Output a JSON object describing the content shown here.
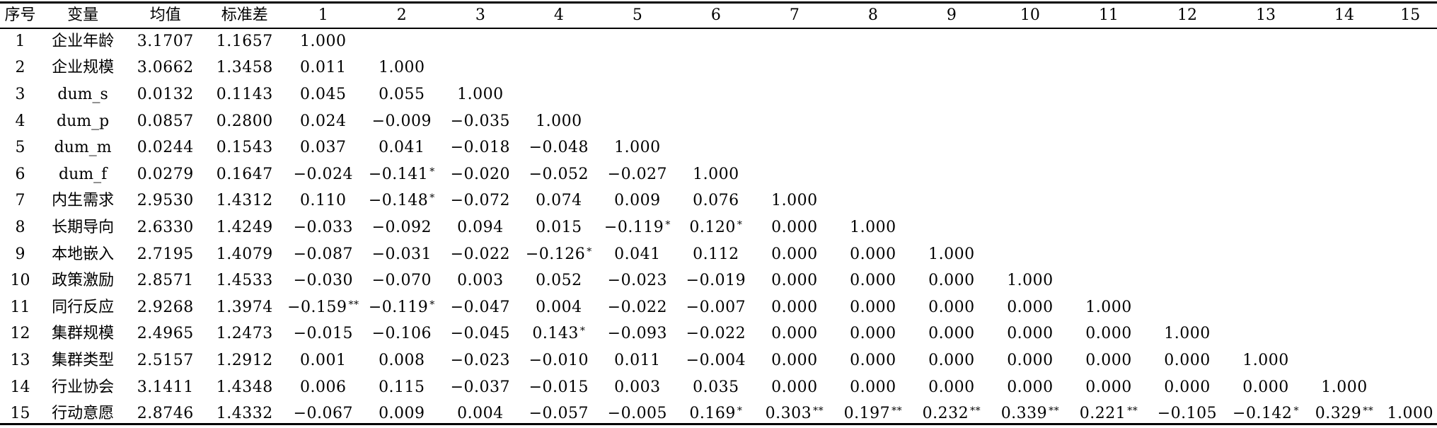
{
  "table": {
    "headers": [
      "序号",
      "变量",
      "均值",
      "标准差",
      "1",
      "2",
      "3",
      "4",
      "5",
      "6",
      "7",
      "8",
      "9",
      "10",
      "11",
      "12",
      "13",
      "14",
      "15"
    ],
    "rows": [
      {
        "index": "1",
        "variable": "企业年龄",
        "mean": "3.1707",
        "sd": "1.1657",
        "corr": [
          {
            "v": "1.000",
            "sig": ""
          }
        ]
      },
      {
        "index": "2",
        "variable": "企业规模",
        "mean": "3.0662",
        "sd": "1.3458",
        "corr": [
          {
            "v": "0.011",
            "sig": ""
          },
          {
            "v": "1.000",
            "sig": ""
          }
        ]
      },
      {
        "index": "3",
        "variable": "dum_s",
        "mean": "0.0132",
        "sd": "0.1143",
        "corr": [
          {
            "v": "0.045",
            "sig": ""
          },
          {
            "v": "0.055",
            "sig": ""
          },
          {
            "v": "1.000",
            "sig": ""
          }
        ]
      },
      {
        "index": "4",
        "variable": "dum_p",
        "mean": "0.0857",
        "sd": "0.2800",
        "corr": [
          {
            "v": "0.024",
            "sig": ""
          },
          {
            "v": "−0.009",
            "sig": ""
          },
          {
            "v": "−0.035",
            "sig": ""
          },
          {
            "v": "1.000",
            "sig": ""
          }
        ]
      },
      {
        "index": "5",
        "variable": "dum_m",
        "mean": "0.0244",
        "sd": "0.1543",
        "corr": [
          {
            "v": "0.037",
            "sig": ""
          },
          {
            "v": "0.041",
            "sig": ""
          },
          {
            "v": "−0.018",
            "sig": ""
          },
          {
            "v": "−0.048",
            "sig": ""
          },
          {
            "v": "1.000",
            "sig": ""
          }
        ]
      },
      {
        "index": "6",
        "variable": "dum_f",
        "mean": "0.0279",
        "sd": "0.1647",
        "corr": [
          {
            "v": "−0.024",
            "sig": ""
          },
          {
            "v": "−0.141",
            "sig": "*"
          },
          {
            "v": "−0.020",
            "sig": ""
          },
          {
            "v": "−0.052",
            "sig": ""
          },
          {
            "v": "−0.027",
            "sig": ""
          },
          {
            "v": "1.000",
            "sig": ""
          }
        ]
      },
      {
        "index": "7",
        "variable": "内生需求",
        "mean": "2.9530",
        "sd": "1.4312",
        "corr": [
          {
            "v": "0.110",
            "sig": ""
          },
          {
            "v": "−0.148",
            "sig": "*"
          },
          {
            "v": "−0.072",
            "sig": ""
          },
          {
            "v": "0.074",
            "sig": ""
          },
          {
            "v": "0.009",
            "sig": ""
          },
          {
            "v": "0.076",
            "sig": ""
          },
          {
            "v": "1.000",
            "sig": ""
          }
        ]
      },
      {
        "index": "8",
        "variable": "长期导向",
        "mean": "2.6330",
        "sd": "1.4249",
        "corr": [
          {
            "v": "−0.033",
            "sig": ""
          },
          {
            "v": "−0.092",
            "sig": ""
          },
          {
            "v": "0.094",
            "sig": ""
          },
          {
            "v": "0.015",
            "sig": ""
          },
          {
            "v": "−0.119",
            "sig": "*"
          },
          {
            "v": "0.120",
            "sig": "*"
          },
          {
            "v": "0.000",
            "sig": ""
          },
          {
            "v": "1.000",
            "sig": ""
          }
        ]
      },
      {
        "index": "9",
        "variable": "本地嵌入",
        "mean": "2.7195",
        "sd": "1.4079",
        "corr": [
          {
            "v": "−0.087",
            "sig": ""
          },
          {
            "v": "−0.031",
            "sig": ""
          },
          {
            "v": "−0.022",
            "sig": ""
          },
          {
            "v": "−0.126",
            "sig": "*"
          },
          {
            "v": "0.041",
            "sig": ""
          },
          {
            "v": "0.112",
            "sig": ""
          },
          {
            "v": "0.000",
            "sig": ""
          },
          {
            "v": "0.000",
            "sig": ""
          },
          {
            "v": "1.000",
            "sig": ""
          }
        ]
      },
      {
        "index": "10",
        "variable": "政策激励",
        "mean": "2.8571",
        "sd": "1.4533",
        "corr": [
          {
            "v": "−0.030",
            "sig": ""
          },
          {
            "v": "−0.070",
            "sig": ""
          },
          {
            "v": "0.003",
            "sig": ""
          },
          {
            "v": "0.052",
            "sig": ""
          },
          {
            "v": "−0.023",
            "sig": ""
          },
          {
            "v": "−0.019",
            "sig": ""
          },
          {
            "v": "0.000",
            "sig": ""
          },
          {
            "v": "0.000",
            "sig": ""
          },
          {
            "v": "0.000",
            "sig": ""
          },
          {
            "v": "1.000",
            "sig": ""
          }
        ]
      },
      {
        "index": "11",
        "variable": "同行反应",
        "mean": "2.9268",
        "sd": "1.3974",
        "corr": [
          {
            "v": "−0.159",
            "sig": "**"
          },
          {
            "v": "−0.119",
            "sig": "*"
          },
          {
            "v": "−0.047",
            "sig": ""
          },
          {
            "v": "0.004",
            "sig": ""
          },
          {
            "v": "−0.022",
            "sig": ""
          },
          {
            "v": "−0.007",
            "sig": ""
          },
          {
            "v": "0.000",
            "sig": ""
          },
          {
            "v": "0.000",
            "sig": ""
          },
          {
            "v": "0.000",
            "sig": ""
          },
          {
            "v": "0.000",
            "sig": ""
          },
          {
            "v": "1.000",
            "sig": ""
          }
        ]
      },
      {
        "index": "12",
        "variable": "集群规模",
        "mean": "2.4965",
        "sd": "1.2473",
        "corr": [
          {
            "v": "−0.015",
            "sig": ""
          },
          {
            "v": "−0.106",
            "sig": ""
          },
          {
            "v": "−0.045",
            "sig": ""
          },
          {
            "v": "0.143",
            "sig": "*"
          },
          {
            "v": "−0.093",
            "sig": ""
          },
          {
            "v": "−0.022",
            "sig": ""
          },
          {
            "v": "0.000",
            "sig": ""
          },
          {
            "v": "0.000",
            "sig": ""
          },
          {
            "v": "0.000",
            "sig": ""
          },
          {
            "v": "0.000",
            "sig": ""
          },
          {
            "v": "0.000",
            "sig": ""
          },
          {
            "v": "1.000",
            "sig": ""
          }
        ]
      },
      {
        "index": "13",
        "variable": "集群类型",
        "mean": "2.5157",
        "sd": "1.2912",
        "corr": [
          {
            "v": "0.001",
            "sig": ""
          },
          {
            "v": "0.008",
            "sig": ""
          },
          {
            "v": "−0.023",
            "sig": ""
          },
          {
            "v": "−0.010",
            "sig": ""
          },
          {
            "v": "0.011",
            "sig": ""
          },
          {
            "v": "−0.004",
            "sig": ""
          },
          {
            "v": "0.000",
            "sig": ""
          },
          {
            "v": "0.000",
            "sig": ""
          },
          {
            "v": "0.000",
            "sig": ""
          },
          {
            "v": "0.000",
            "sig": ""
          },
          {
            "v": "0.000",
            "sig": ""
          },
          {
            "v": "0.000",
            "sig": ""
          },
          {
            "v": "1.000",
            "sig": ""
          }
        ]
      },
      {
        "index": "14",
        "variable": "行业协会",
        "mean": "3.1411",
        "sd": "1.4348",
        "corr": [
          {
            "v": "0.006",
            "sig": ""
          },
          {
            "v": "0.115",
            "sig": ""
          },
          {
            "v": "−0.037",
            "sig": ""
          },
          {
            "v": "−0.015",
            "sig": ""
          },
          {
            "v": "0.003",
            "sig": ""
          },
          {
            "v": "0.035",
            "sig": ""
          },
          {
            "v": "0.000",
            "sig": ""
          },
          {
            "v": "0.000",
            "sig": ""
          },
          {
            "v": "0.000",
            "sig": ""
          },
          {
            "v": "0.000",
            "sig": ""
          },
          {
            "v": "0.000",
            "sig": ""
          },
          {
            "v": "0.000",
            "sig": ""
          },
          {
            "v": "0.000",
            "sig": ""
          },
          {
            "v": "1.000",
            "sig": ""
          }
        ]
      },
      {
        "index": "15",
        "variable": "行动意愿",
        "mean": "2.8746",
        "sd": "1.4332",
        "corr": [
          {
            "v": "−0.067",
            "sig": ""
          },
          {
            "v": "0.009",
            "sig": ""
          },
          {
            "v": "0.004",
            "sig": ""
          },
          {
            "v": "−0.057",
            "sig": ""
          },
          {
            "v": "−0.005",
            "sig": ""
          },
          {
            "v": "0.169",
            "sig": "*"
          },
          {
            "v": "0.303",
            "sig": "**"
          },
          {
            "v": "0.197",
            "sig": "**"
          },
          {
            "v": "0.232",
            "sig": "**"
          },
          {
            "v": "0.339",
            "sig": "**"
          },
          {
            "v": "0.221",
            "sig": "**"
          },
          {
            "v": "−0.105",
            "sig": ""
          },
          {
            "v": "−0.142",
            "sig": "*"
          },
          {
            "v": "0.329",
            "sig": "**"
          },
          {
            "v": "1.000",
            "sig": ""
          }
        ]
      }
    ]
  }
}
